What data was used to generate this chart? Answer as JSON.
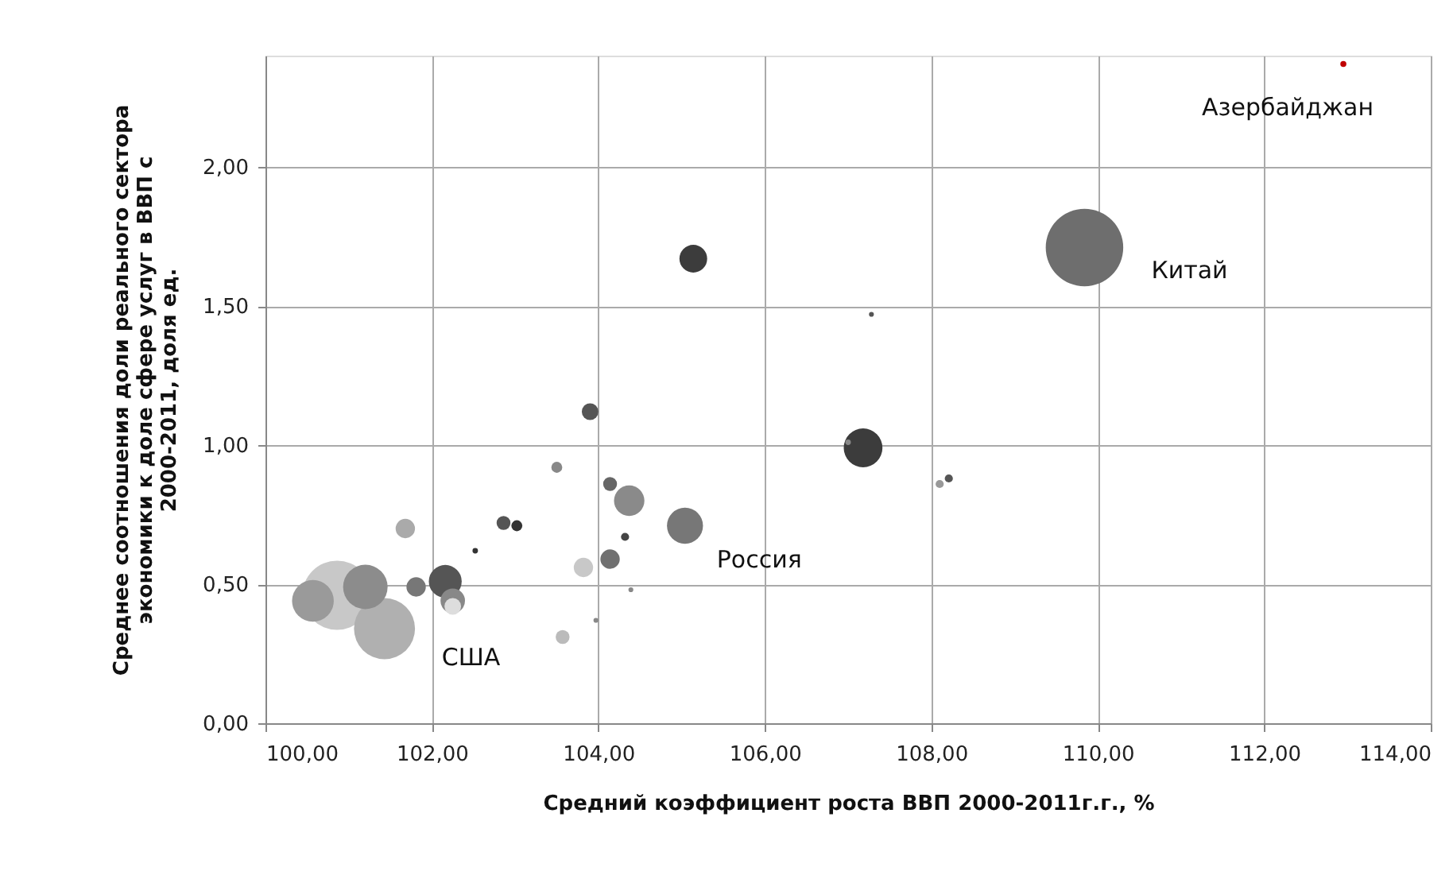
{
  "chart_data": {
    "type": "bubble",
    "xlabel": "Средний коэффициент роста ВВП 2000-2011г.г., %",
    "ylabel": "Среднее соотношения доли реального сектора экономики к  доле сфере услуг в ВВП с 2000-2011, доля ед.",
    "x": [
      100.86,
      109.84,
      101.43,
      101.2,
      100.57,
      107.18,
      102.16,
      104.37,
      105.14,
      105.04,
      102.25,
      101.68,
      104.14,
      103.82,
      101.81,
      102.25,
      103.9,
      104.14,
      102.86,
      103.57,
      103.5,
      103.02,
      104.32,
      108.21,
      108.1,
      107.0,
      102.52,
      112.95,
      107.28,
      104.39,
      103.97
    ],
    "values": [
      0.46,
      1.71,
      0.34,
      0.49,
      0.44,
      0.99,
      0.51,
      0.8,
      1.67,
      0.71,
      0.44,
      0.7,
      0.59,
      0.56,
      0.49,
      0.42,
      1.12,
      0.86,
      0.72,
      0.31,
      0.92,
      0.71,
      0.67,
      0.88,
      0.86,
      1.01,
      0.62,
      2.37,
      1.47,
      0.48,
      0.37
    ],
    "sizes": [
      0.8,
      1,
      0.62,
      0.33,
      0.29,
      0.25,
      0.18,
      0.154,
      0.128,
      0.216,
      0.1,
      0.0625,
      0.0625,
      0.0625,
      0.0625,
      0.046,
      0.046,
      0.032,
      0.032,
      0.032,
      0.02,
      0.02,
      0.011,
      0.011,
      0.011,
      0.005,
      0.005,
      0.006,
      0.004,
      0.004,
      0.004
    ],
    "colors": [
      "#c8c8c8",
      "#6e6e6e",
      "#b0b0b0",
      "#8c8c8c",
      "#9a9a9a",
      "#3c3c3c",
      "#555555",
      "#8a8a8a",
      "#3c3c3c",
      "#777777",
      "#888888",
      "#aaaaaa",
      "#707070",
      "#c8c8c8",
      "#777777",
      "#dddddd",
      "#555555",
      "#666666",
      "#555555",
      "#bbbbbb",
      "#888888",
      "#333333",
      "#444444",
      "#555555",
      "#999999",
      "#888888",
      "#333333",
      "#c00000",
      "#555555",
      "#888888",
      "#888888"
    ],
    "xlim": [
      100,
      114
    ],
    "xticks": [
      {
        "value": 100,
        "label": "100,00"
      },
      {
        "value": 102,
        "label": "102,00"
      },
      {
        "value": 104,
        "label": "104,00"
      },
      {
        "value": 106,
        "label": "106,00"
      },
      {
        "value": 108,
        "label": "108,00"
      },
      {
        "value": 110,
        "label": "110,00"
      },
      {
        "value": 112,
        "label": "112,00"
      },
      {
        "value": 114,
        "label": "114,00"
      }
    ],
    "ylim": [
      0,
      2.4
    ],
    "yticks": [
      {
        "value": 0,
        "label": "0,00"
      },
      {
        "value": 0.5,
        "label": "0,50"
      },
      {
        "value": 1,
        "label": "1,00"
      },
      {
        "value": 1.5,
        "label": "1,50"
      },
      {
        "value": 2,
        "label": "2,00"
      }
    ],
    "grid": true,
    "annotations": [
      {
        "text": "Азербайджан",
        "x": 112.95,
        "y": 2.37
      },
      {
        "text": "Китай",
        "x": 109.84,
        "y": 1.71
      },
      {
        "text": "Россия",
        "x": 105.04,
        "y": 0.71
      },
      {
        "text": "США",
        "x": 101.43,
        "y": 0.34
      }
    ]
  }
}
